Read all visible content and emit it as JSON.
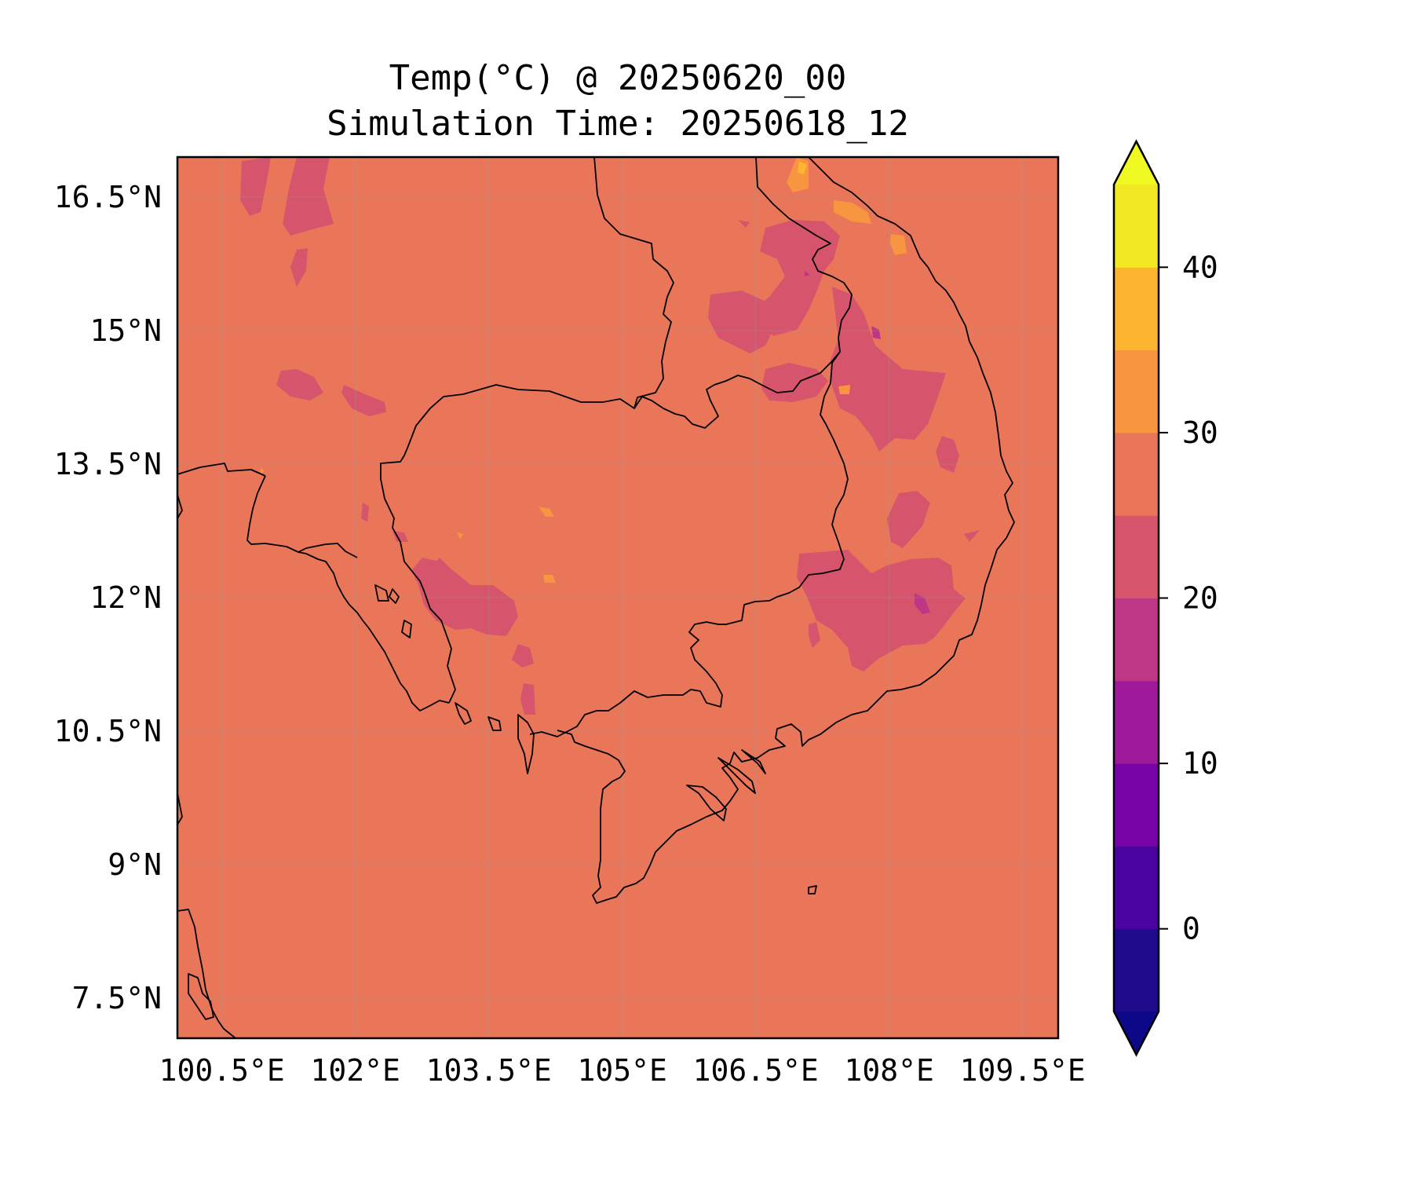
{
  "title": {
    "line1": "Temp(°C) @ 20250620_00",
    "line2": "Simulation Time: 20250618_12"
  },
  "map": {
    "background_color": "#ea765a",
    "lon_ticks": [
      "100.5°E",
      "102°E",
      "103.5°E",
      "105°E",
      "106.5°E",
      "108°E",
      "109.5°E"
    ],
    "lat_ticks": [
      "16.5°N",
      "15°N",
      "13.5°N",
      "12°N",
      "10.5°N",
      "9°N",
      "7.5°N"
    ],
    "lon_range": [
      100.0,
      109.9
    ],
    "lat_range": [
      7.05,
      16.95
    ],
    "gridlines": true
  },
  "colorbar": {
    "tick_labels": [
      "40",
      "30",
      "20",
      "10",
      "0"
    ],
    "levels": [
      -5,
      0,
      5,
      10,
      15,
      20,
      25,
      30,
      35,
      40,
      45
    ],
    "colors": [
      "#200a8c",
      "#4a03a0",
      "#7a03a8",
      "#9e1a9b",
      "#bd3786",
      "#d6556d",
      "#ea765a",
      "#f89540",
      "#fdb42f",
      "#f3e824"
    ],
    "under_color": "#0d0887",
    "over_color": "#f0f921",
    "extend": "both"
  }
}
